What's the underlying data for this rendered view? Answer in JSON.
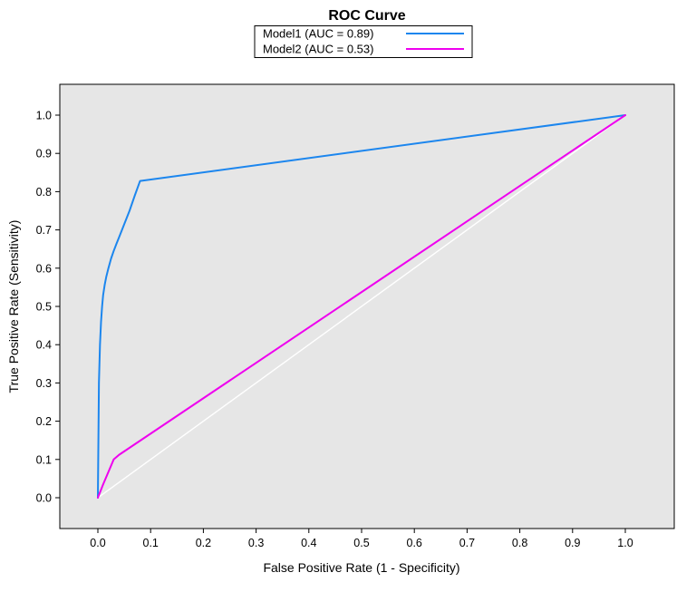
{
  "figure": {
    "title": "ROC Curve",
    "xlabel": "False Positive Rate (1 - Specificity)",
    "ylabel": "True Positive Rate (Sensitivity)"
  },
  "chart_data": {
    "type": "line",
    "title": "ROC Curve",
    "xlabel": "False Positive Rate (1 - Specificity)",
    "ylabel": "True Positive Rate (Sensitivity)",
    "xlim": [
      0,
      1
    ],
    "ylim": [
      0,
      1
    ],
    "xticks": [
      "0.0",
      "0.1",
      "0.2",
      "0.3",
      "0.4",
      "0.5",
      "0.6",
      "0.7",
      "0.8",
      "0.9",
      "1.0"
    ],
    "yticks": [
      "0.0",
      "0.1",
      "0.2",
      "0.3",
      "0.4",
      "0.5",
      "0.6",
      "0.7",
      "0.8",
      "0.9",
      "1.0"
    ],
    "grid": false,
    "plot_background": "#E6E6E6",
    "plot_border_color": "#000000",
    "legend": {
      "position": "top-center",
      "background": "#FFFFFF",
      "border_color": "#000000"
    },
    "reference_line": {
      "color": "#FFFFFF",
      "points": [
        [
          0,
          0
        ],
        [
          1,
          1
        ]
      ]
    },
    "series": [
      {
        "name": "Model1 (AUC = 0.89)",
        "auc": 0.89,
        "color": "#1C86EE",
        "points": [
          [
            0,
            0
          ],
          [
            0.002,
            0.3
          ],
          [
            0.004,
            0.4
          ],
          [
            0.006,
            0.46
          ],
          [
            0.008,
            0.5
          ],
          [
            0.01,
            0.53
          ],
          [
            0.013,
            0.557
          ],
          [
            0.016,
            0.578
          ],
          [
            0.02,
            0.6
          ],
          [
            0.025,
            0.625
          ],
          [
            0.03,
            0.645
          ],
          [
            0.035,
            0.663
          ],
          [
            0.04,
            0.68
          ],
          [
            0.05,
            0.715
          ],
          [
            0.06,
            0.75
          ],
          [
            0.07,
            0.79
          ],
          [
            0.08,
            0.828
          ],
          [
            1,
            1
          ]
        ]
      },
      {
        "name": "Model2 (AUC = 0.53)",
        "auc": 0.53,
        "color": "#EE00EE",
        "points": [
          [
            0,
            0
          ],
          [
            0.01,
            0.035
          ],
          [
            0.03,
            0.1
          ],
          [
            0.04,
            0.112
          ],
          [
            1,
            1
          ]
        ]
      }
    ]
  }
}
